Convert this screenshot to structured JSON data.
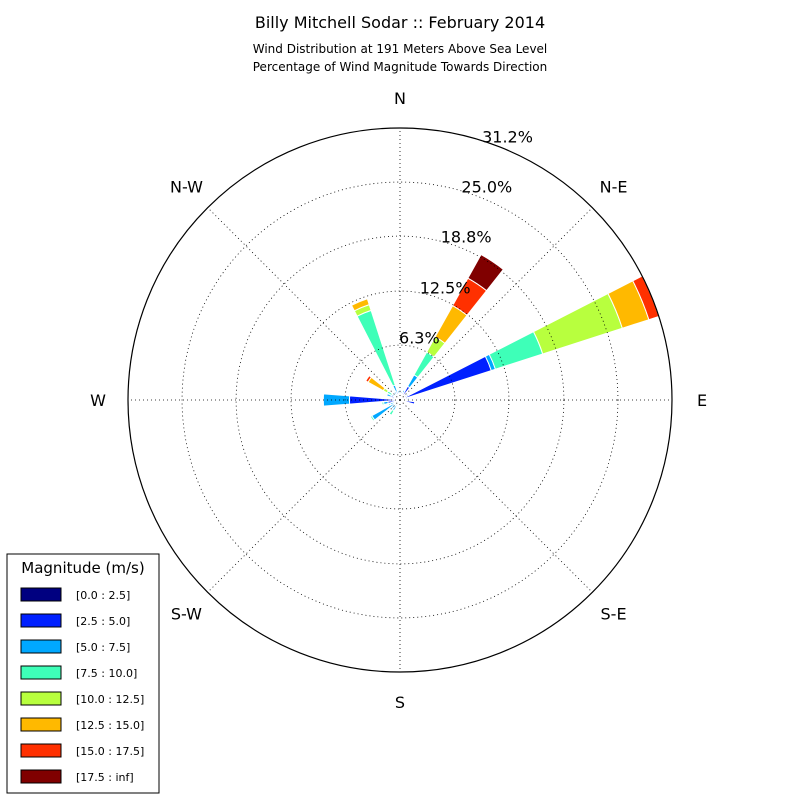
{
  "chart_data": {
    "type": "windrose",
    "title": "Billy Mitchell Sodar :: February 2014",
    "subtitle_lines": [
      "Wind Distribution at 191 Meters Above Sea Level",
      "Percentage of Wind Magnitude Towards Direction"
    ],
    "directions": [
      {
        "label": "N",
        "deg": 0
      },
      {
        "label": "N-E",
        "deg": 45
      },
      {
        "label": "E",
        "deg": 90
      },
      {
        "label": "S-E",
        "deg": 135
      },
      {
        "label": "S",
        "deg": 180
      },
      {
        "label": "S-W",
        "deg": 225
      },
      {
        "label": "W",
        "deg": 270
      },
      {
        "label": "N-W",
        "deg": 315
      }
    ],
    "radial_ticks": [
      6.3,
      12.5,
      18.8,
      25.0,
      31.2
    ],
    "radial_tick_labels": [
      "6.3%",
      "12.5%",
      "18.8%",
      "25.0%",
      "31.2%"
    ],
    "rmax": 31.2,
    "grid": true,
    "bins": [
      {
        "label": "[0.0 : 2.5]",
        "color": "#000080"
      },
      {
        "label": "[2.5 : 5.0]",
        "color": "#0020ff"
      },
      {
        "label": "[5.0 : 7.5]",
        "color": "#00a8ff"
      },
      {
        "label": "[7.5 : 10.0]",
        "color": "#3effb8"
      },
      {
        "label": "[10.0 : 12.5]",
        "color": "#b8ff3e"
      },
      {
        "label": "[12.5 : 15.0]",
        "color": "#ffb900"
      },
      {
        "label": "[15.0 : 17.5]",
        "color": "#ff3000"
      },
      {
        "label": "[17.5 : inf]",
        "color": "#800000"
      }
    ],
    "sectors": [
      {
        "dir": 0,
        "values": [
          0.5,
          0.5,
          0.2,
          0,
          0,
          0,
          0,
          0
        ]
      },
      {
        "dir": 11.25,
        "values": [
          0.4,
          0.4,
          0.2,
          0,
          0,
          0,
          0,
          0
        ]
      },
      {
        "dir": 22.5,
        "values": [
          0.4,
          0.5,
          0.3,
          0,
          0,
          0,
          0,
          0
        ]
      },
      {
        "dir": 33.75,
        "values": [
          0.6,
          1.2,
          1.5,
          3.0,
          2.0,
          4.1,
          3.6,
          3.1
        ]
      },
      {
        "dir": 45,
        "values": [
          0.5,
          0.4,
          0.2,
          0,
          0,
          0,
          0,
          0
        ]
      },
      {
        "dir": 56.25,
        "values": [
          0.5,
          0.4,
          0.2,
          0,
          0,
          0,
          0,
          0
        ]
      },
      {
        "dir": 67.5,
        "values": [
          0.7,
          10.3,
          0.5,
          5.7,
          9.6,
          3.2,
          1.4,
          0
        ]
      },
      {
        "dir": 78.75,
        "values": [
          0.5,
          0.4,
          0.2,
          0,
          0,
          0,
          0,
          0
        ]
      },
      {
        "dir": 90,
        "values": [
          0.5,
          0.3,
          0.2,
          0,
          0,
          0,
          0,
          0
        ]
      },
      {
        "dir": 101.25,
        "values": [
          0.5,
          1.2,
          0,
          0,
          0,
          0,
          0,
          0
        ]
      },
      {
        "dir": 112.5,
        "values": [
          0.4,
          0.2,
          0,
          0,
          0,
          0,
          0,
          0
        ]
      },
      {
        "dir": 123.75,
        "values": [
          0.4,
          0.2,
          0,
          0,
          0,
          0,
          0,
          0
        ]
      },
      {
        "dir": 135,
        "values": [
          0.4,
          0.2,
          0,
          0,
          0,
          0,
          0,
          0
        ]
      },
      {
        "dir": 146.25,
        "values": [
          0.4,
          0.2,
          0,
          0,
          0,
          0,
          0,
          0
        ]
      },
      {
        "dir": 157.5,
        "values": [
          0.4,
          0.2,
          0,
          0,
          0,
          0,
          0,
          0
        ]
      },
      {
        "dir": 168.75,
        "values": [
          0.4,
          0.2,
          0,
          0,
          0,
          0,
          0,
          0
        ]
      },
      {
        "dir": 180,
        "values": [
          0.4,
          0.2,
          0,
          0,
          0,
          0,
          0,
          0
        ]
      },
      {
        "dir": 191.25,
        "values": [
          0.4,
          0.2,
          0,
          0,
          0,
          0,
          0,
          0
        ]
      },
      {
        "dir": 202.5,
        "values": [
          0.4,
          0.2,
          0,
          0,
          0,
          0,
          0,
          0
        ]
      },
      {
        "dir": 213.75,
        "values": [
          0.3,
          0.4,
          0.7,
          0.6,
          0,
          0,
          0,
          0
        ]
      },
      {
        "dir": 225,
        "values": [
          0.3,
          0.3,
          0.7,
          0,
          0,
          0,
          0,
          0
        ]
      },
      {
        "dir": 236.25,
        "values": [
          0.3,
          0.5,
          2.9,
          0.2,
          0,
          0,
          0,
          0
        ]
      },
      {
        "dir": 247.5,
        "values": [
          0.3,
          0.3,
          0.6,
          0.2,
          0,
          0,
          0,
          0
        ]
      },
      {
        "dir": 258.75,
        "values": [
          0.3,
          1.1,
          0.5,
          0.2,
          0,
          0,
          0,
          0
        ]
      },
      {
        "dir": 270,
        "values": [
          0.3,
          5.5,
          3.0,
          0,
          0,
          0,
          0,
          0
        ]
      },
      {
        "dir": 281.25,
        "values": [
          0.3,
          0.3,
          0.3,
          0,
          0,
          0,
          0,
          0
        ]
      },
      {
        "dir": 292.5,
        "values": [
          0.3,
          0.8,
          0.5,
          0,
          0,
          0,
          0,
          0
        ]
      },
      {
        "dir": 303.75,
        "values": [
          0.3,
          0.5,
          0.3,
          0.6,
          0.5,
          2.0,
          0.3,
          0
        ]
      },
      {
        "dir": 315,
        "values": [
          0.3,
          0.4,
          0.4,
          0,
          0,
          0,
          0,
          0
        ]
      },
      {
        "dir": 326.25,
        "values": [
          0.3,
          0.4,
          0.4,
          0,
          0,
          0,
          0,
          0
        ]
      },
      {
        "dir": 337.5,
        "values": [
          0.4,
          0.6,
          0.8,
          9.0,
          0.7,
          0.7,
          0,
          0
        ]
      },
      {
        "dir": 348.75,
        "values": [
          0.4,
          0.4,
          0.3,
          0,
          0,
          0,
          0,
          0
        ]
      }
    ],
    "legend": {
      "title": "Magnitude (m/s)",
      "position": "bottom-left"
    }
  }
}
